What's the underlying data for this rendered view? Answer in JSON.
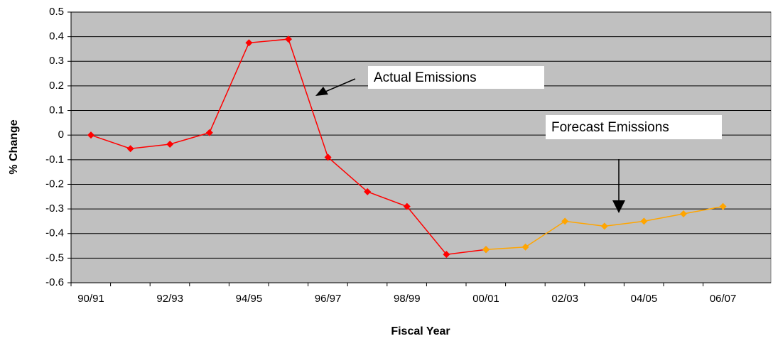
{
  "chart_data": {
    "type": "line",
    "categories": [
      "90/91",
      null,
      "92/93",
      null,
      "94/95",
      null,
      "96/97",
      null,
      "98/99",
      null,
      "00/01",
      null,
      "02/03",
      null,
      "04/05",
      null,
      "06/07"
    ],
    "series": [
      {
        "name": "Actual Emissions",
        "color": "#ff0000",
        "values": [
          0,
          -0.055,
          -0.037,
          0.01,
          0.375,
          0.39,
          -0.09,
          -0.23,
          -0.29,
          -0.485,
          -0.465,
          null,
          null,
          null,
          null,
          null,
          null
        ]
      },
      {
        "name": "Forecast Emissions",
        "color": "#ffa500",
        "values": [
          null,
          null,
          null,
          null,
          null,
          null,
          null,
          null,
          null,
          null,
          -0.465,
          -0.455,
          -0.35,
          -0.37,
          -0.35,
          -0.32,
          -0.29
        ]
      }
    ],
    "ylim": [
      -0.6,
      0.5
    ],
    "yticks": [
      -0.6,
      -0.5,
      -0.4,
      -0.3,
      -0.2,
      -0.1,
      0,
      0.1,
      0.2,
      0.3,
      0.4,
      0.5
    ],
    "xlabel": "Fiscal Year",
    "ylabel": "% Change",
    "grid": true,
    "background": "#c0c0c0"
  }
}
